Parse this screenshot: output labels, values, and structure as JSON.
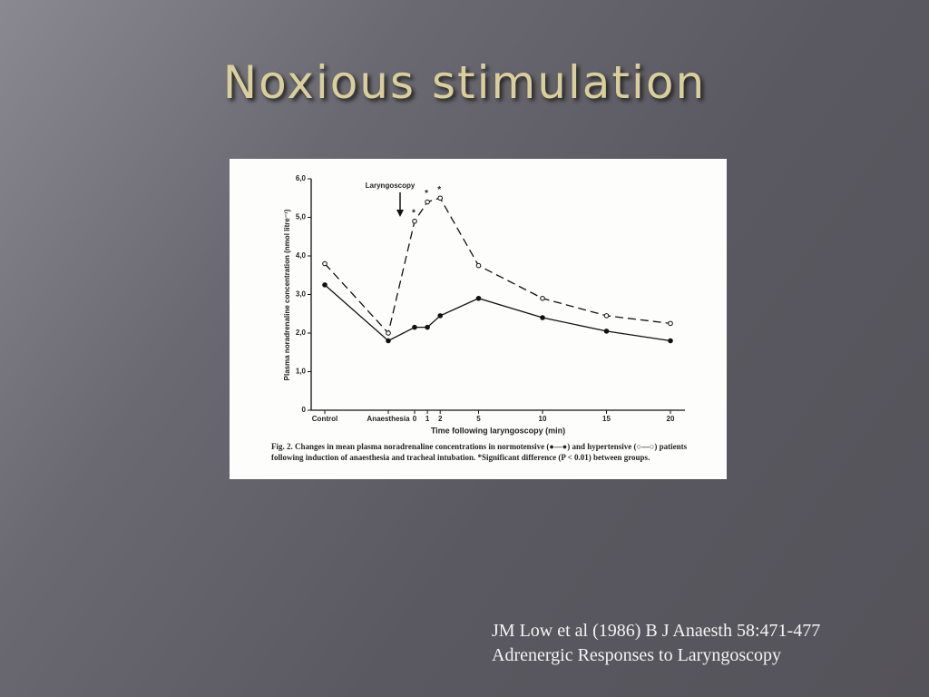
{
  "slide_title": "Noxious stimulation",
  "citation": [
    "JM Low et al (1986) B J Anaesth 58:471-477",
    "Adrenergic Responses to Laryngoscopy"
  ],
  "chart_data": {
    "type": "line",
    "annotation": "Laryngoscopy",
    "significance_marks": [
      "*",
      "*",
      "*"
    ],
    "ylabel": "Plasma noradrenaline concentration (nmol litre⁻¹)",
    "xlabel": "Time following laryngoscopy (min)",
    "caption": "Fig. 2. Changes in mean plasma noradrenaline concentrations in normotensive (●—●) and hypertensive (○—○) patients following induction of anaesthesia and tracheal intubation. *Significant difference (P < 0.01) between groups.",
    "categories": [
      "Control",
      "Anaesthesia",
      "0",
      "1",
      "2",
      "5",
      "10",
      "15",
      "20"
    ],
    "series": [
      {
        "color": "#111111",
        "dashed": false,
        "marker": "filled",
        "values": [
          3.25,
          1.8,
          2.15,
          2.15,
          2.45,
          2.9,
          2.4,
          2.05,
          1.8
        ]
      },
      {
        "color": "#111111",
        "dashed": true,
        "marker": "open",
        "values": [
          3.8,
          2.0,
          4.9,
          5.4,
          5.5,
          3.75,
          2.9,
          2.45,
          2.25
        ]
      }
    ],
    "ylim": [
      0,
      6
    ],
    "yticks": [
      0,
      {
        "value": 1,
        "label": "1,0"
      },
      {
        "value": 2,
        "label": "2,0"
      },
      {
        "value": 3,
        "label": "3,0"
      },
      {
        "value": 4,
        "label": "4,0"
      },
      {
        "value": 5,
        "label": "5,0"
      },
      {
        "value": 6,
        "label": "6,0"
      }
    ]
  }
}
